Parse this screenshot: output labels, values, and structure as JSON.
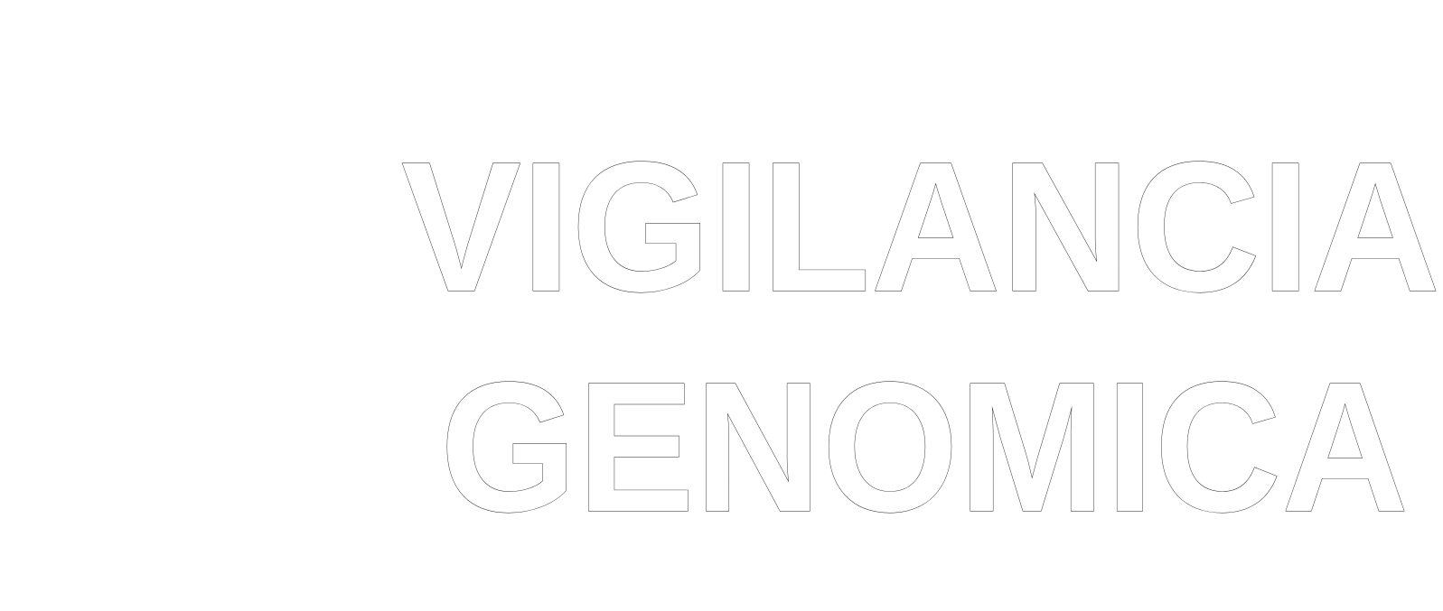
{
  "title": {
    "line1": "VIGILANCIA",
    "line2": "GENOMICA"
  },
  "colors": {
    "background": "#ffffff",
    "letter_fill": "#ffffff",
    "letter_outline": "#1a1a1a"
  }
}
